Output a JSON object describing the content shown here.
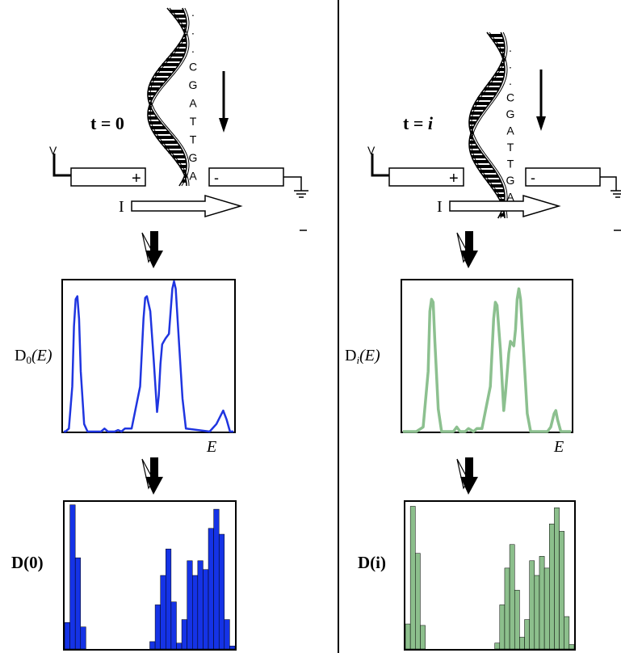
{
  "left": {
    "time_label": "t = 0",
    "base_letters": [
      ".",
      ".",
      ".",
      "C",
      "G",
      "A",
      "T",
      "T",
      "G",
      "A"
    ],
    "voltage_label": "V",
    "plus_sign": "+",
    "minus_sign": "-",
    "current_label": "I",
    "dos_label": "D",
    "dos_subscript": "0",
    "dos_argument": "(E)",
    "energy_label": "E",
    "vector_label_bold": "D",
    "vector_label_arg": "(0)",
    "curve_color": "#1f35e0",
    "bar_color": "#1533e6",
    "curve": [
      [
        0.0,
        0.0
      ],
      [
        0.01,
        0.0
      ],
      [
        0.03,
        0.02
      ],
      [
        0.05,
        0.3
      ],
      [
        0.06,
        0.7
      ],
      [
        0.07,
        0.88
      ],
      [
        0.08,
        0.9
      ],
      [
        0.09,
        0.75
      ],
      [
        0.1,
        0.4
      ],
      [
        0.12,
        0.05
      ],
      [
        0.14,
        0.0
      ],
      [
        0.22,
        0.0
      ],
      [
        0.24,
        0.02
      ],
      [
        0.26,
        0.0
      ],
      [
        0.3,
        0.0
      ],
      [
        0.32,
        0.01
      ],
      [
        0.34,
        0.0
      ],
      [
        0.36,
        0.02
      ],
      [
        0.4,
        0.02
      ],
      [
        0.45,
        0.3
      ],
      [
        0.47,
        0.75
      ],
      [
        0.48,
        0.89
      ],
      [
        0.49,
        0.9
      ],
      [
        0.51,
        0.8
      ],
      [
        0.53,
        0.48
      ],
      [
        0.55,
        0.13
      ],
      [
        0.56,
        0.24
      ],
      [
        0.57,
        0.45
      ],
      [
        0.58,
        0.58
      ],
      [
        0.59,
        0.6
      ],
      [
        0.6,
        0.62
      ],
      [
        0.62,
        0.65
      ],
      [
        0.63,
        0.8
      ],
      [
        0.64,
        0.95
      ],
      [
        0.65,
        1.0
      ],
      [
        0.66,
        0.95
      ],
      [
        0.68,
        0.58
      ],
      [
        0.7,
        0.22
      ],
      [
        0.72,
        0.02
      ],
      [
        0.86,
        0.0
      ],
      [
        0.9,
        0.05
      ],
      [
        0.94,
        0.14
      ],
      [
        0.96,
        0.08
      ],
      [
        0.98,
        0.0
      ],
      [
        1.0,
        0.0
      ]
    ],
    "bars": [
      0.18,
      0.98,
      0.62,
      0.15,
      0.0,
      0.0,
      0.0,
      0.0,
      0.0,
      0.0,
      0.0,
      0.0,
      0.0,
      0.0,
      0.0,
      0.0,
      0.05,
      0.3,
      0.5,
      0.68,
      0.32,
      0.04,
      0.2,
      0.6,
      0.5,
      0.6,
      0.54,
      0.82,
      0.95,
      0.78,
      0.2,
      0.02
    ]
  },
  "right": {
    "time_label_plain": "t = ",
    "time_label_italic": "i",
    "base_letters": [
      ".",
      ".",
      ".",
      "C",
      "G",
      "A",
      "T",
      "T",
      "G",
      "A"
    ],
    "voltage_label": "V",
    "plus_sign": "+",
    "minus_sign": "-",
    "current_label": "I",
    "dos_label": "D",
    "dos_subscript": "i",
    "dos_argument": "(E)",
    "energy_label": "E",
    "vector_label_bold": "D",
    "vector_label_arg": "(i)",
    "curve_color": "#8cc08f",
    "bar_color": "#8cbf8c",
    "curve": [
      [
        0.0,
        0.0
      ],
      [
        0.08,
        0.0
      ],
      [
        0.12,
        0.03
      ],
      [
        0.15,
        0.4
      ],
      [
        0.16,
        0.8
      ],
      [
        0.17,
        0.88
      ],
      [
        0.18,
        0.86
      ],
      [
        0.19,
        0.6
      ],
      [
        0.21,
        0.15
      ],
      [
        0.23,
        0.0
      ],
      [
        0.3,
        0.0
      ],
      [
        0.32,
        0.03
      ],
      [
        0.34,
        0.0
      ],
      [
        0.37,
        0.0
      ],
      [
        0.39,
        0.02
      ],
      [
        0.42,
        0.0
      ],
      [
        0.44,
        0.02
      ],
      [
        0.47,
        0.02
      ],
      [
        0.52,
        0.3
      ],
      [
        0.54,
        0.75
      ],
      [
        0.55,
        0.86
      ],
      [
        0.56,
        0.84
      ],
      [
        0.58,
        0.55
      ],
      [
        0.6,
        0.14
      ],
      [
        0.61,
        0.25
      ],
      [
        0.63,
        0.52
      ],
      [
        0.64,
        0.6
      ],
      [
        0.66,
        0.57
      ],
      [
        0.67,
        0.68
      ],
      [
        0.68,
        0.88
      ],
      [
        0.69,
        0.95
      ],
      [
        0.7,
        0.88
      ],
      [
        0.72,
        0.5
      ],
      [
        0.74,
        0.12
      ],
      [
        0.76,
        0.0
      ],
      [
        0.86,
        0.0
      ],
      [
        0.88,
        0.03
      ],
      [
        0.9,
        0.12
      ],
      [
        0.91,
        0.14
      ],
      [
        0.92,
        0.08
      ],
      [
        0.94,
        0.0
      ],
      [
        1.0,
        0.0
      ]
    ],
    "bars": [
      0.17,
      0.97,
      0.65,
      0.16,
      0.0,
      0.0,
      0.0,
      0.0,
      0.0,
      0.0,
      0.0,
      0.0,
      0.0,
      0.0,
      0.0,
      0.0,
      0.0,
      0.0,
      0.04,
      0.3,
      0.55,
      0.71,
      0.4,
      0.08,
      0.2,
      0.6,
      0.5,
      0.63,
      0.55,
      0.85,
      0.96,
      0.8,
      0.22,
      0.03
    ]
  },
  "colors": {
    "frame": "#000000",
    "helix": "#000000"
  }
}
